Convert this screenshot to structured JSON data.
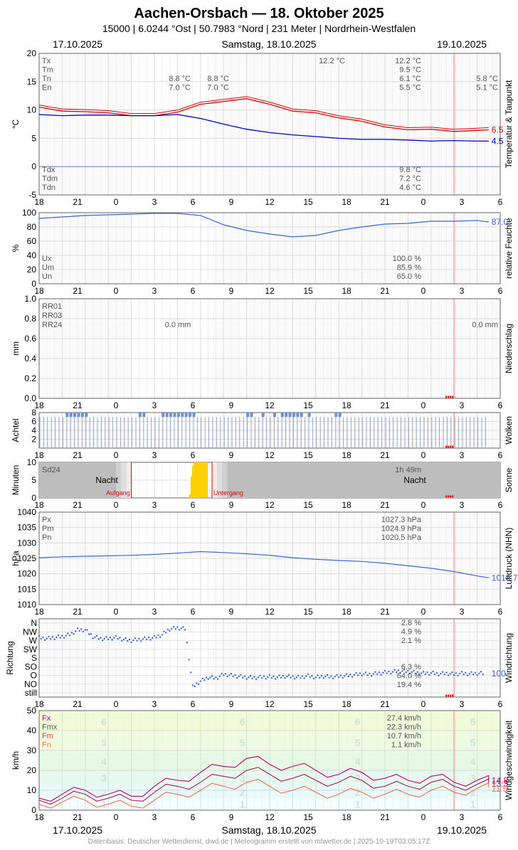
{
  "header": {
    "title": "Aachen-Orsbach  —  18. Oktober 2025",
    "subtitle": "15000  |  6.0244 °Ost  |  50.7983 °Nord  |  231 Meter  |  Nordrhein-Westfalen",
    "date_left": "17.10.2025",
    "date_center": "Samstag, 18.10.2025",
    "date_right": "19.10.2025"
  },
  "footer": {
    "text": "Datenbasis: Deutscher Wetterdienst, dwd.de | Meteogramm erstellt von mtwetter.de | 2025-10-19T03:05:17Z",
    "date_left": "17.10.2025",
    "date_center": "Samstag, 18.10.2025",
    "date_right": "19.10.2025"
  },
  "colors": {
    "temp": "#e00000",
    "dew": "#0000cc",
    "line": "#3a66d6",
    "sun": "#ffd000",
    "night": "#bdbdbd"
  },
  "chart_data": [
    {
      "id": "temp",
      "type": "line",
      "ylabel": "°C",
      "side_label": "Temperatur & Taupunkt",
      "ylim": [
        -5,
        20
      ],
      "yticks": [
        -5,
        0,
        5,
        10,
        15,
        20
      ],
      "xticks": [
        "18",
        "21",
        "0",
        "3",
        "6",
        "9",
        "12",
        "15",
        "18",
        "21",
        "0",
        "3",
        "6"
      ],
      "series": [
        {
          "name": "temp",
          "color": "#e00000",
          "last_label": "6.5",
          "x": [
            0,
            3,
            6,
            9,
            12,
            15,
            18,
            21,
            24,
            27,
            30,
            33,
            36,
            39,
            42,
            45,
            48,
            51,
            54,
            57,
            58.5
          ],
          "values": [
            10.5,
            9.8,
            9.7,
            9.5,
            9.0,
            9.0,
            9.6,
            11.0,
            11.5,
            12.0,
            11.0,
            9.8,
            9.5,
            8.6,
            8.0,
            7.0,
            6.5,
            6.6,
            6.2,
            6.4,
            6.5
          ]
        },
        {
          "name": "dew",
          "color": "#0000cc",
          "last_label": "4.5",
          "x": [
            0,
            3,
            6,
            9,
            12,
            15,
            18,
            21,
            24,
            27,
            30,
            33,
            36,
            39,
            42,
            45,
            48,
            51,
            54,
            57,
            58.5
          ],
          "values": [
            9.2,
            9.0,
            9.1,
            9.1,
            9.0,
            9.0,
            9.2,
            8.5,
            7.5,
            6.6,
            6.0,
            5.6,
            5.3,
            5.0,
            4.8,
            4.8,
            4.7,
            4.5,
            4.6,
            4.5,
            4.5
          ]
        }
      ],
      "stats_left": [
        {
          "label": "Tx",
          "v1": "",
          "v2": "",
          "v3": "12.2 °C",
          "v4": "12.2 °C",
          "v5": ""
        },
        {
          "label": "Tm",
          "v1": "",
          "v2": "",
          "v3": "",
          "v4": "9.5 °C",
          "v5": ""
        },
        {
          "label": "Tn",
          "v1": "8.8 °C",
          "v2": "8.8 °C",
          "v3": "",
          "v4": "6.1 °C",
          "v5": "5.8 °C"
        },
        {
          "label": "En",
          "v1": "7.0 °C",
          "v2": "7.0 °C",
          "v3": "",
          "v4": "5.5 °C",
          "v5": "5.1 °C"
        }
      ],
      "stats_bottom": [
        {
          "label": "Tdx",
          "value": "9.8 °C"
        },
        {
          "label": "Tdm",
          "value": "7.2 °C"
        },
        {
          "label": "Tdn",
          "value": "4.6 °C"
        }
      ]
    },
    {
      "id": "hum",
      "type": "line",
      "ylabel": "%",
      "side_label": "relative Feuchte",
      "ylim": [
        0,
        100
      ],
      "yticks": [
        0,
        20,
        40,
        60,
        80,
        100
      ],
      "series": [
        {
          "name": "rh",
          "color": "#3a66d6",
          "last_label": "87.0",
          "x": [
            0,
            3,
            6,
            9,
            12,
            15,
            18,
            21,
            24,
            27,
            30,
            33,
            36,
            39,
            42,
            45,
            48,
            51,
            54,
            57,
            58.5
          ],
          "values": [
            92,
            94,
            96,
            97,
            98,
            99,
            99,
            96,
            83,
            75,
            70,
            66,
            68,
            75,
            80,
            84,
            85,
            88,
            88,
            89,
            87
          ]
        }
      ],
      "stats": [
        {
          "label": "Ux",
          "value": "100.0 %"
        },
        {
          "label": "Um",
          "value": "85.9 %"
        },
        {
          "label": "Un",
          "value": "65.0 %"
        }
      ]
    },
    {
      "id": "rain",
      "type": "bar",
      "ylabel": "mm",
      "side_label": "Niederschlag",
      "ylim": [
        0,
        1.0
      ],
      "yticks": [
        "0.0",
        "0.2",
        "0.4",
        "0.6",
        "0.8",
        "1.0"
      ],
      "labels": [
        "RR01",
        "RR03",
        "RR24"
      ],
      "value_mid": "0.0 mm",
      "value_right": "0.0 mm"
    },
    {
      "id": "cloud",
      "type": "bar",
      "ylabel": "Achtel",
      "side_label": "Wolken",
      "ylim": [
        0,
        8
      ],
      "yticks": [
        2,
        4,
        6,
        8
      ],
      "full_octa_hours": [
        [
          3.5,
          6.5
        ],
        [
          13.0,
          14.0
        ],
        [
          16.0,
          20.5
        ],
        [
          27.0,
          28.0
        ],
        [
          29.0,
          29.5
        ],
        [
          30.5,
          31.0
        ],
        [
          31.5,
          34.5
        ],
        [
          35.0,
          35.5
        ],
        [
          38.5,
          39.5
        ]
      ]
    },
    {
      "id": "sun",
      "type": "bar",
      "ylabel": "Minuten",
      "side_label": "Sonne",
      "ylim": [
        0,
        10
      ],
      "yticks": [
        0,
        5,
        10
      ],
      "label": "Sd24",
      "night_label": "Nacht",
      "total": "1h 49m",
      "sunrise_label": "Aufgang",
      "sunset_label": "Untergang",
      "sunrise_h": 12.0,
      "sunset_h": 22.5,
      "sun_x": [
        19.5,
        19.7,
        19.9,
        20.1,
        20.3,
        20.5,
        20.7,
        20.9,
        21.1,
        21.3,
        21.5,
        21.7
      ],
      "sun_values": [
        1,
        6,
        9,
        10,
        10,
        10,
        10,
        10,
        10,
        10,
        10,
        10
      ]
    },
    {
      "id": "press",
      "type": "line",
      "ylabel": "hPa",
      "side_label": "Luftdruck (NHN)",
      "ylim": [
        1010,
        1040
      ],
      "yticks": [
        1010,
        1015,
        1020,
        1025,
        1030,
        1035,
        1040
      ],
      "series": [
        {
          "name": "p",
          "color": "#3a66d6",
          "last_label": "1018.7",
          "x": [
            0,
            3,
            6,
            9,
            12,
            15,
            18,
            21,
            24,
            27,
            30,
            33,
            36,
            39,
            42,
            45,
            48,
            51,
            54,
            57,
            58.5
          ],
          "values": [
            1025.2,
            1025.5,
            1025.7,
            1025.8,
            1026.0,
            1026.3,
            1026.7,
            1027.2,
            1026.9,
            1026.5,
            1026.0,
            1025.2,
            1024.7,
            1024.3,
            1024.0,
            1023.4,
            1022.6,
            1021.8,
            1020.7,
            1019.3,
            1018.7
          ]
        }
      ],
      "stats": [
        {
          "label": "Px",
          "value": "1027.3 hPa"
        },
        {
          "label": "Pm",
          "value": "1024.9 hPa"
        },
        {
          "label": "Pn",
          "value": "1020.5 hPa"
        }
      ]
    },
    {
      "id": "wind_dir",
      "type": "scatter",
      "ylabel": "Richtung",
      "side_label": "Windrichtung",
      "categories": [
        "still",
        "NO",
        "O",
        "SO",
        "S",
        "SW",
        "W",
        "NW",
        "N"
      ],
      "last_label": "100",
      "dir_top": [
        "2.8 %",
        "4.9 %",
        "2.1 %"
      ],
      "dir_bottom": [
        "6.3 %",
        "64.0 %",
        "19.4 %"
      ],
      "x": [
        0,
        1,
        2,
        3,
        4,
        5,
        6,
        7,
        8,
        9,
        10,
        11,
        12,
        13,
        14,
        15,
        16,
        17,
        18,
        19,
        20,
        21,
        22,
        23,
        24,
        25,
        26,
        27,
        28,
        29,
        30,
        31,
        32,
        33,
        34,
        35,
        36,
        37,
        38,
        39,
        40,
        41,
        42,
        43,
        44,
        45,
        46,
        47,
        48,
        49,
        50,
        51,
        52,
        53,
        54,
        55,
        56,
        57,
        58
      ],
      "values": [
        285,
        280,
        285,
        290,
        300,
        325,
        325,
        290,
        280,
        280,
        285,
        275,
        270,
        275,
        280,
        285,
        300,
        330,
        335,
        330,
        30,
        60,
        80,
        75,
        95,
        90,
        85,
        80,
        78,
        80,
        82,
        80,
        85,
        82,
        80,
        88,
        80,
        85,
        82,
        85,
        88,
        92,
        98,
        95,
        100,
        105,
        108,
        112,
        110,
        104,
        100,
        102,
        98,
        100,
        96,
        100,
        98,
        100,
        100
      ]
    },
    {
      "id": "wind",
      "type": "line",
      "ylabel": "km/h",
      "side_label": "Windgeschwindigkeit",
      "ylim": [
        0,
        50
      ],
      "yticks": [
        0,
        10,
        20,
        30,
        40,
        50
      ],
      "beaufort": [
        "1",
        "2",
        "3",
        "4",
        "5",
        "6"
      ],
      "series": [
        {
          "name": "Fx",
          "color": "#c0006a",
          "last_label": "14.8",
          "x": [
            0,
            3,
            6,
            9,
            12,
            15,
            18,
            21,
            24,
            27,
            30,
            33,
            36,
            39,
            42,
            45,
            48,
            51,
            54,
            57,
            58.5
          ],
          "values": [
            6,
            8,
            10,
            8,
            7,
            12,
            15,
            19,
            22,
            26,
            23,
            22,
            20,
            18,
            19,
            16,
            15,
            17,
            14,
            15,
            14.8
          ]
        },
        {
          "name": "Fmx",
          "color": "#a02050",
          "last_label": "13.3",
          "x": [
            0,
            3,
            6,
            9,
            12,
            15,
            18,
            21,
            24,
            27,
            30,
            33,
            36,
            39,
            42,
            45,
            48,
            51,
            54,
            57,
            58.5
          ],
          "values": [
            5,
            6,
            8,
            6,
            5,
            9,
            12,
            14,
            17,
            20,
            18,
            16,
            15,
            14,
            15,
            12,
            12,
            14,
            12,
            13,
            13.3
          ]
        },
        {
          "name": "Fm",
          "color": "#f07050",
          "last_label": "11.5",
          "x": [
            0,
            3,
            6,
            9,
            12,
            15,
            18,
            21,
            24,
            27,
            30,
            33,
            36,
            39,
            42,
            45,
            48,
            51,
            54,
            57,
            58.5
          ],
          "values": [
            3,
            4,
            5,
            3,
            2,
            5,
            8,
            10,
            12,
            14,
            12,
            10,
            9,
            8,
            9,
            8,
            8,
            10,
            9,
            11,
            11.5
          ]
        }
      ],
      "stats": [
        {
          "label": "Fx",
          "value": "27.4 km/h"
        },
        {
          "label": "Fmx",
          "value": "22.3 km/h"
        },
        {
          "label": "Fm",
          "value": "10.7 km/h"
        },
        {
          "label": "Fn",
          "value": "1.1 km/h"
        }
      ]
    }
  ]
}
